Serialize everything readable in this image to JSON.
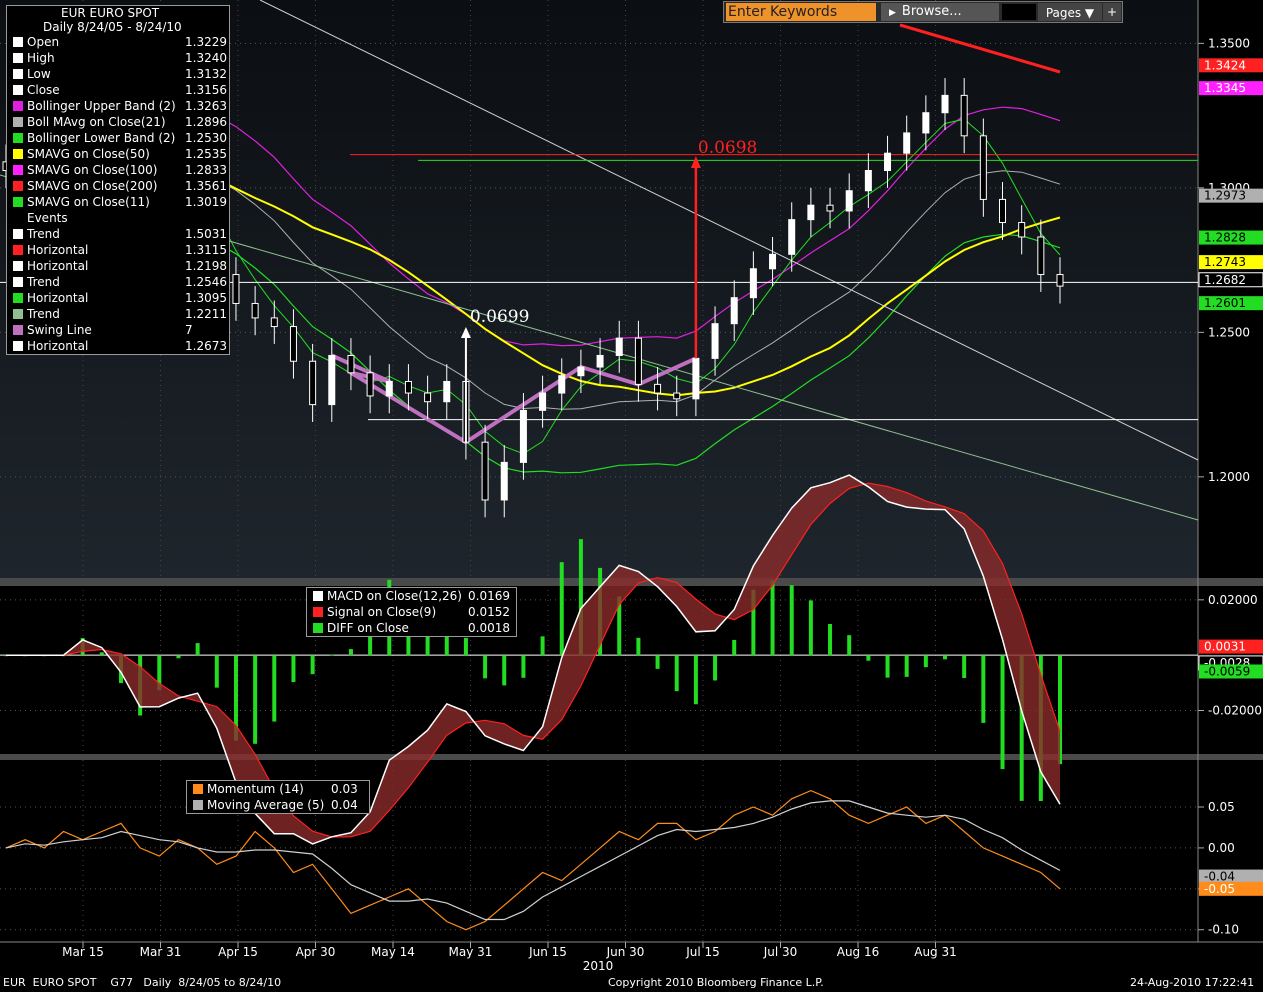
{
  "title": {
    "instrument": "EUR  EURO SPOT",
    "period": "Daily 8/24/05 - 8/24/10"
  },
  "topbar": {
    "keywords_placeholder": "Enter Keywords",
    "browse_label": "Browse...",
    "pages_label": "Pages ▼"
  },
  "footer": {
    "left": "EUR  EURO SPOT    G77   Daily  8/24/05 to 8/24/10",
    "center": "Copyright 2010 Bloomberg Finance L.P.",
    "right": "24-Aug-2010 17:22:41"
  },
  "main_legend": [
    {
      "label": "Open",
      "value": "1.3229",
      "color": "#ffffff"
    },
    {
      "label": "High",
      "value": "1.3240",
      "color": "#ffffff"
    },
    {
      "label": "Low",
      "value": "1.3132",
      "color": "#ffffff"
    },
    {
      "label": "Close",
      "value": "1.3156",
      "color": "#ffffff"
    },
    {
      "label": "Bollinger Upper Band (2)",
      "value": "1.3263",
      "color": "#e020e0"
    },
    {
      "label": "Boll MAvg on Close(21)",
      "value": "1.2896",
      "color": "#b0b0b0"
    },
    {
      "label": "Bollinger Lower Band (2)",
      "value": "1.2530",
      "color": "#22dd22"
    },
    {
      "label": "SMAVG on Close(50)",
      "value": "1.2535",
      "color": "#ffff00"
    },
    {
      "label": "SMAVG on Close(100)",
      "value": "1.2833",
      "color": "#ff20ff"
    },
    {
      "label": "SMAVG on Close(200)",
      "value": "1.3561",
      "color": "#ff2020"
    },
    {
      "label": "SMAVG on Close(11)",
      "value": "1.3019",
      "color": "#22dd22"
    },
    {
      "label": "Events",
      "value": "",
      "color": ""
    },
    {
      "label": "Trend",
      "value": "1.5031",
      "color": "#ffffff"
    },
    {
      "label": "Horizontal",
      "value": "1.3115",
      "color": "#ff2020"
    },
    {
      "label": "Horizontal",
      "value": "1.2198",
      "color": "#ffffff"
    },
    {
      "label": "Trend",
      "value": "1.2546",
      "color": "#ffffff"
    },
    {
      "label": "Horizontal",
      "value": "1.3095",
      "color": "#22dd22"
    },
    {
      "label": "Trend",
      "value": "1.2211",
      "color": "#90c090"
    },
    {
      "label": "Swing Line",
      "value": "7",
      "color": "#c070c0"
    },
    {
      "label": "Horizontal",
      "value": "1.2673",
      "color": "#ffffff"
    }
  ],
  "macd_legend": [
    {
      "label": "MACD on Close(12,26)",
      "value": "0.0169",
      "color": "#ffffff"
    },
    {
      "label": "Signal on Close(9)",
      "value": "0.0152",
      "color": "#ff2020"
    },
    {
      "label": "DIFF on Close",
      "value": "0.0018",
      "color": "#22dd22"
    }
  ],
  "momentum_legend": [
    {
      "label": "Momentum (14)",
      "value": "0.03",
      "color": "#ff8c1a"
    },
    {
      "label": "Moving Average (5)",
      "value": "0.04",
      "color": "#b0b0b0"
    }
  ],
  "chart_data": {
    "type": "candlestick",
    "x_ticks": [
      "Mar 15",
      "Mar 31",
      "Apr 15",
      "Apr 30",
      "May 14",
      "May 31",
      "Jun 15",
      "Jun 30",
      "Jul 15",
      "Jul 30",
      "Aug 16",
      "Aug 31"
    ],
    "x_year_label": "2010",
    "price_axis": {
      "ticks": [
        "1.3500",
        "1.3000",
        "1.2500",
        "1.2000"
      ],
      "ylim": [
        1.165,
        1.365
      ]
    },
    "price_tags": [
      {
        "value": "1.3424",
        "level": 1.3424,
        "color": "#ff2020"
      },
      {
        "value": "1.3345",
        "level": 1.3345,
        "color": "#ff20ff"
      },
      {
        "value": "1.2973",
        "level": 1.2973,
        "color": "#b0b0b0"
      },
      {
        "value": "1.2828",
        "level": 1.2828,
        "color": "#22dd22"
      },
      {
        "value": "1.2743",
        "level": 1.2743,
        "color": "#ffff00"
      },
      {
        "value": "1.2682",
        "level": 1.2682,
        "color": "#000000"
      },
      {
        "value": "1.2601",
        "level": 1.2601,
        "color": "#22dd22"
      }
    ],
    "annotations": [
      {
        "text": "0.0699",
        "color": "#ffffff"
      },
      {
        "text": "0.0698",
        "color": "#ff2020"
      }
    ],
    "close_series": [
      1.306,
      1.314,
      1.32,
      1.33,
      1.31,
      1.295,
      1.292,
      1.305,
      1.311,
      1.295,
      1.288,
      1.27,
      1.26,
      1.255,
      1.252,
      1.24,
      1.225,
      1.242,
      1.236,
      1.228,
      1.233,
      1.229,
      1.226,
      1.233,
      1.212,
      1.192,
      1.205,
      1.223,
      1.229,
      1.235,
      1.238,
      1.242,
      1.248,
      1.232,
      1.229,
      1.227,
      1.241,
      1.253,
      1.262,
      1.272,
      1.277,
      1.289,
      1.294,
      1.292,
      1.299,
      1.306,
      1.312,
      1.319,
      1.326,
      1.332,
      1.318,
      1.296,
      1.288,
      1.283,
      1.27,
      1.266
    ],
    "macd_axis": {
      "ticks": [
        "0.02000",
        "-0.02000"
      ],
      "ylim": [
        -0.035,
        0.025
      ]
    },
    "macd_tags": [
      {
        "value": "0.0031",
        "level": 0.0031,
        "color": "#ff2020"
      },
      {
        "value": "-0.0028",
        "level": -0.0028,
        "color": "#000000"
      },
      {
        "value": "-0.0059",
        "level": -0.0059,
        "color": "#22dd22"
      }
    ],
    "momentum_axis": {
      "ticks": [
        "0.05",
        "0.00",
        "-0.05",
        "-0.10"
      ],
      "ylim": [
        -0.115,
        0.105
      ]
    },
    "momentum_tags": [
      {
        "value": "-0.04",
        "level": -0.035,
        "color": "#b0b0b0"
      },
      {
        "value": "-0.05",
        "level": -0.05,
        "color": "#ff8c1a"
      }
    ],
    "momentum_series": [
      0.0,
      0.01,
      0.0,
      0.02,
      0.01,
      0.02,
      0.03,
      0.0,
      -0.01,
      0.01,
      0.0,
      -0.02,
      -0.01,
      0.02,
      0.0,
      -0.03,
      -0.02,
      -0.05,
      -0.08,
      -0.07,
      -0.06,
      -0.05,
      -0.07,
      -0.09,
      -0.1,
      -0.09,
      -0.07,
      -0.05,
      -0.03,
      -0.04,
      -0.02,
      0.0,
      0.02,
      0.01,
      0.03,
      0.03,
      0.01,
      0.02,
      0.04,
      0.05,
      0.04,
      0.06,
      0.07,
      0.06,
      0.04,
      0.03,
      0.04,
      0.05,
      0.03,
      0.04,
      0.02,
      0.0,
      -0.01,
      -0.02,
      -0.03,
      -0.05
    ]
  }
}
